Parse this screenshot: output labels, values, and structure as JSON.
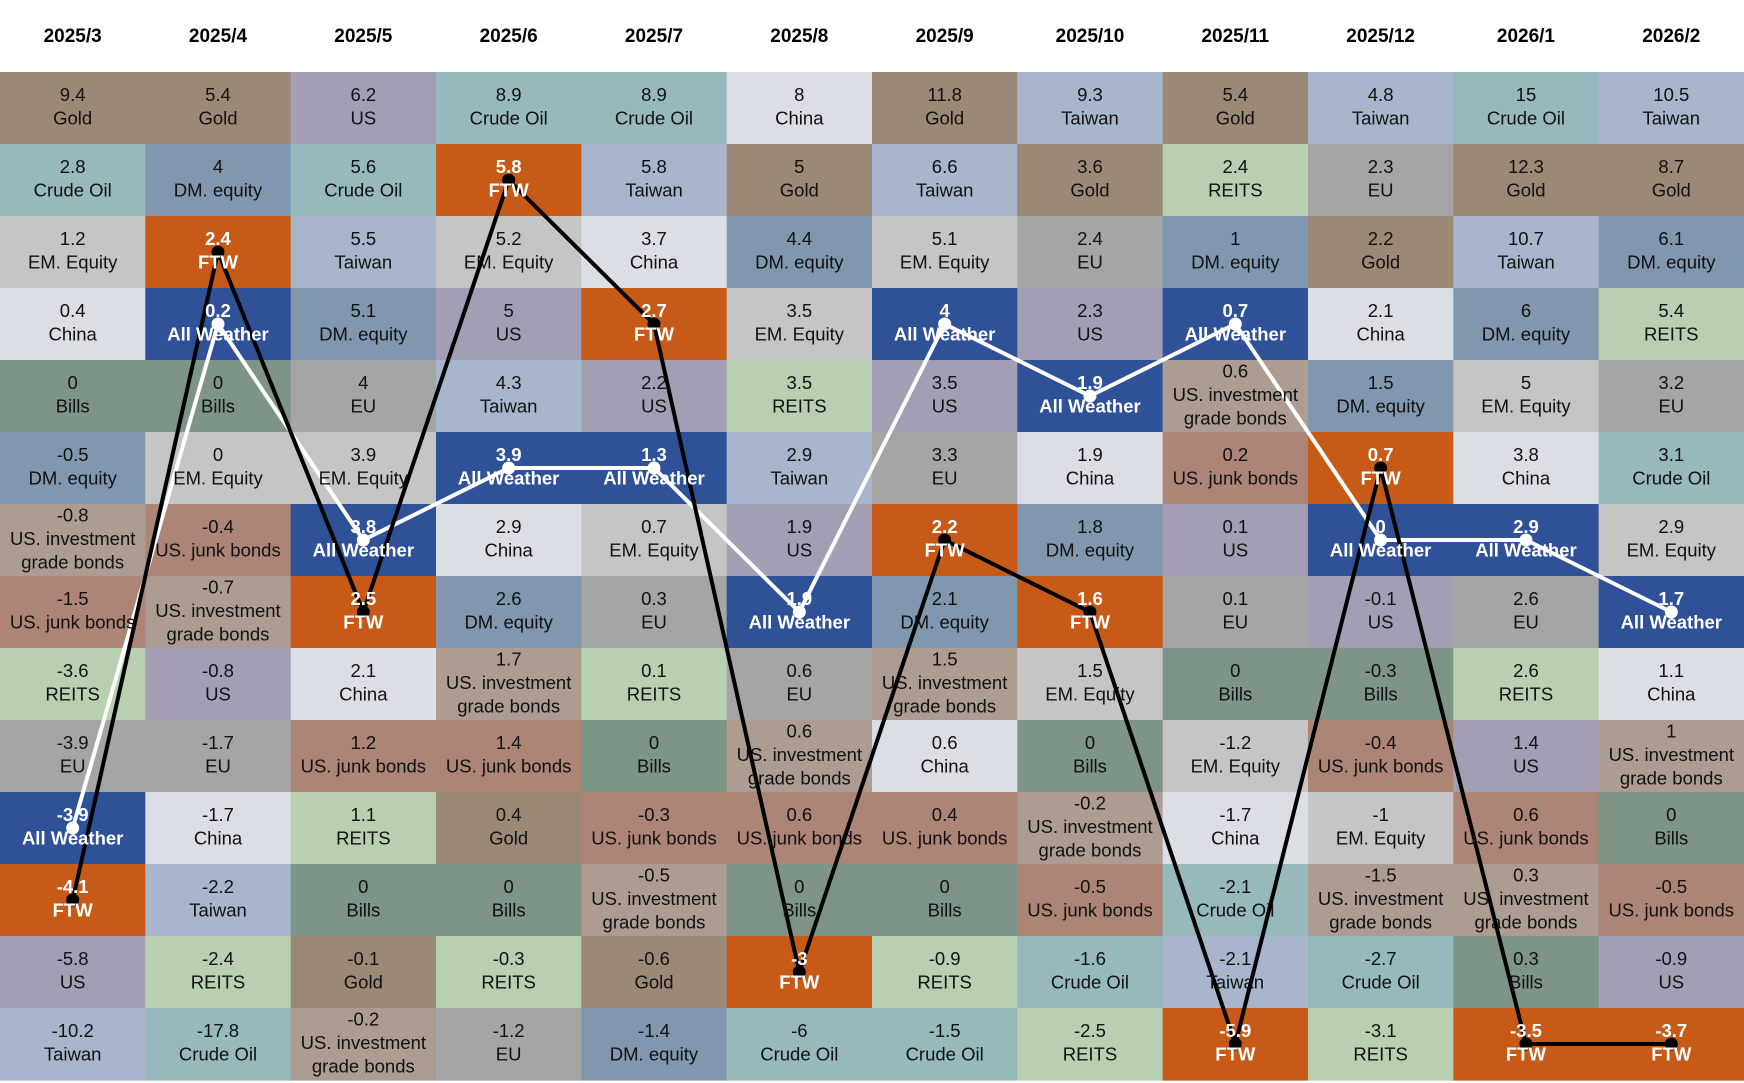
{
  "chart_data": {
    "type": "table",
    "columns": [
      "2025/3",
      "2025/4",
      "2025/5",
      "2025/6",
      "2025/7",
      "2025/8",
      "2025/9",
      "2025/10",
      "2025/11",
      "2025/12",
      "2026/1",
      "2026/2"
    ],
    "colors": {
      "Gold": "#9b8977",
      "Crude Oil": "#97b9bc",
      "EM. Equity": "#c5c5c5",
      "China": "#dcdee6",
      "Bills": "#7e9486",
      "DM. equity": "#8197b0",
      "US. investment grade bonds": "#ad9c92",
      "US. junk bonds": "#ac8577",
      "REITS": "#b9cfb2",
      "EU": "#a5a5a5",
      "All Weather": "#2e5198",
      "FTW": "#c65a16",
      "US": "#a39eb4",
      "Taiwan": "#a7b6cc"
    },
    "line_colors": {
      "FTW": "#000000",
      "All Weather": "#ffffff"
    },
    "cells": [
      [
        {
          "value": "9.4",
          "asset": "Gold"
        },
        {
          "value": "2.8",
          "asset": "Crude Oil"
        },
        {
          "value": "1.2",
          "asset": "EM. Equity"
        },
        {
          "value": "0.4",
          "asset": "China"
        },
        {
          "value": "0",
          "asset": "Bills"
        },
        {
          "value": "-0.5",
          "asset": "DM. equity"
        },
        {
          "value": "-0.8",
          "asset": "US. investment grade bonds"
        },
        {
          "value": "-1.5",
          "asset": "US. junk bonds"
        },
        {
          "value": "-3.6",
          "asset": "REITS"
        },
        {
          "value": "-3.9",
          "asset": "EU"
        },
        {
          "value": "-3.9",
          "asset": "All Weather"
        },
        {
          "value": "-4.1",
          "asset": "FTW"
        },
        {
          "value": "-5.8",
          "asset": "US"
        },
        {
          "value": "-10.2",
          "asset": "Taiwan"
        }
      ],
      [
        {
          "value": "5.4",
          "asset": "Gold"
        },
        {
          "value": "4",
          "asset": "DM. equity"
        },
        {
          "value": "2.4",
          "asset": "FTW"
        },
        {
          "value": "0.2",
          "asset": "All Weather"
        },
        {
          "value": "0",
          "asset": "Bills"
        },
        {
          "value": "0",
          "asset": "EM. Equity"
        },
        {
          "value": "-0.4",
          "asset": "US. junk bonds"
        },
        {
          "value": "-0.7",
          "asset": "US. investment grade bonds"
        },
        {
          "value": "-0.8",
          "asset": "US"
        },
        {
          "value": "-1.7",
          "asset": "EU"
        },
        {
          "value": "-1.7",
          "asset": "China"
        },
        {
          "value": "-2.2",
          "asset": "Taiwan"
        },
        {
          "value": "-2.4",
          "asset": "REITS"
        },
        {
          "value": "-17.8",
          "asset": "Crude Oil"
        }
      ],
      [
        {
          "value": "6.2",
          "asset": "US"
        },
        {
          "value": "5.6",
          "asset": "Crude Oil"
        },
        {
          "value": "5.5",
          "asset": "Taiwan"
        },
        {
          "value": "5.1",
          "asset": "DM. equity"
        },
        {
          "value": "4",
          "asset": "EU"
        },
        {
          "value": "3.9",
          "asset": "EM. Equity"
        },
        {
          "value": "3.8",
          "asset": "All Weather"
        },
        {
          "value": "2.5",
          "asset": "FTW"
        },
        {
          "value": "2.1",
          "asset": "China"
        },
        {
          "value": "1.2",
          "asset": "US. junk bonds"
        },
        {
          "value": "1.1",
          "asset": "REITS"
        },
        {
          "value": "0",
          "asset": "Bills"
        },
        {
          "value": "-0.1",
          "asset": "Gold"
        },
        {
          "value": "-0.2",
          "asset": "US. investment grade bonds"
        }
      ],
      [
        {
          "value": "8.9",
          "asset": "Crude Oil"
        },
        {
          "value": "5.8",
          "asset": "FTW"
        },
        {
          "value": "5.2",
          "asset": "EM. Equity"
        },
        {
          "value": "5",
          "asset": "US"
        },
        {
          "value": "4.3",
          "asset": "Taiwan"
        },
        {
          "value": "3.9",
          "asset": "All Weather"
        },
        {
          "value": "2.9",
          "asset": "China"
        },
        {
          "value": "2.6",
          "asset": "DM. equity"
        },
        {
          "value": "1.7",
          "asset": "US. investment grade bonds"
        },
        {
          "value": "1.4",
          "asset": "US. junk bonds"
        },
        {
          "value": "0.4",
          "asset": "Gold"
        },
        {
          "value": "0",
          "asset": "Bills"
        },
        {
          "value": "-0.3",
          "asset": "REITS"
        },
        {
          "value": "-1.2",
          "asset": "EU"
        }
      ],
      [
        {
          "value": "8.9",
          "asset": "Crude Oil"
        },
        {
          "value": "5.8",
          "asset": "Taiwan"
        },
        {
          "value": "3.7",
          "asset": "China"
        },
        {
          "value": "2.7",
          "asset": "FTW"
        },
        {
          "value": "2.2",
          "asset": "US"
        },
        {
          "value": "1.3",
          "asset": "All Weather"
        },
        {
          "value": "0.7",
          "asset": "EM. Equity"
        },
        {
          "value": "0.3",
          "asset": "EU"
        },
        {
          "value": "0.1",
          "asset": "REITS"
        },
        {
          "value": "0",
          "asset": "Bills"
        },
        {
          "value": "-0.3",
          "asset": "US. junk bonds"
        },
        {
          "value": "-0.5",
          "asset": "US. investment grade bonds"
        },
        {
          "value": "-0.6",
          "asset": "Gold"
        },
        {
          "value": "-1.4",
          "asset": "DM. equity"
        }
      ],
      [
        {
          "value": "8",
          "asset": "China"
        },
        {
          "value": "5",
          "asset": "Gold"
        },
        {
          "value": "4.4",
          "asset": "DM. equity"
        },
        {
          "value": "3.5",
          "asset": "EM. Equity"
        },
        {
          "value": "3.5",
          "asset": "REITS"
        },
        {
          "value": "2.9",
          "asset": "Taiwan"
        },
        {
          "value": "1.9",
          "asset": "US"
        },
        {
          "value": "1.9",
          "asset": "All Weather"
        },
        {
          "value": "0.6",
          "asset": "EU"
        },
        {
          "value": "0.6",
          "asset": "US. investment grade bonds"
        },
        {
          "value": "0.6",
          "asset": "US. junk bonds"
        },
        {
          "value": "0",
          "asset": "Bills"
        },
        {
          "value": "-3",
          "asset": "FTW"
        },
        {
          "value": "-6",
          "asset": "Crude Oil"
        }
      ],
      [
        {
          "value": "11.8",
          "asset": "Gold"
        },
        {
          "value": "6.6",
          "asset": "Taiwan"
        },
        {
          "value": "5.1",
          "asset": "EM. Equity"
        },
        {
          "value": "4",
          "asset": "All Weather"
        },
        {
          "value": "3.5",
          "asset": "US"
        },
        {
          "value": "3.3",
          "asset": "EU"
        },
        {
          "value": "2.2",
          "asset": "FTW"
        },
        {
          "value": "2.1",
          "asset": "DM. equity"
        },
        {
          "value": "1.5",
          "asset": "US. investment grade bonds"
        },
        {
          "value": "0.6",
          "asset": "China"
        },
        {
          "value": "0.4",
          "asset": "US. junk bonds"
        },
        {
          "value": "0",
          "asset": "Bills"
        },
        {
          "value": "-0.9",
          "asset": "REITS"
        },
        {
          "value": "-1.5",
          "asset": "Crude Oil"
        }
      ],
      [
        {
          "value": "9.3",
          "asset": "Taiwan"
        },
        {
          "value": "3.6",
          "asset": "Gold"
        },
        {
          "value": "2.4",
          "asset": "EU"
        },
        {
          "value": "2.3",
          "asset": "US"
        },
        {
          "value": "1.9",
          "asset": "All Weather"
        },
        {
          "value": "1.9",
          "asset": "China"
        },
        {
          "value": "1.8",
          "asset": "DM. equity"
        },
        {
          "value": "1.6",
          "asset": "FTW"
        },
        {
          "value": "1.5",
          "asset": "EM. Equity"
        },
        {
          "value": "0",
          "asset": "Bills"
        },
        {
          "value": "-0.2",
          "asset": "US. investment grade bonds"
        },
        {
          "value": "-0.5",
          "asset": "US. junk bonds"
        },
        {
          "value": "-1.6",
          "asset": "Crude Oil"
        },
        {
          "value": "-2.5",
          "asset": "REITS"
        }
      ],
      [
        {
          "value": "5.4",
          "asset": "Gold"
        },
        {
          "value": "2.4",
          "asset": "REITS"
        },
        {
          "value": "1",
          "asset": "DM. equity"
        },
        {
          "value": "0.7",
          "asset": "All Weather"
        },
        {
          "value": "0.6",
          "asset": "US. investment grade bonds"
        },
        {
          "value": "0.2",
          "asset": "US. junk bonds"
        },
        {
          "value": "0.1",
          "asset": "US"
        },
        {
          "value": "0.1",
          "asset": "EU"
        },
        {
          "value": "0",
          "asset": "Bills"
        },
        {
          "value": "-1.2",
          "asset": "EM. Equity"
        },
        {
          "value": "-1.7",
          "asset": "China"
        },
        {
          "value": "-2.1",
          "asset": "Crude Oil"
        },
        {
          "value": "-2.1",
          "asset": "Taiwan"
        },
        {
          "value": "-5.9",
          "asset": "FTW"
        }
      ],
      [
        {
          "value": "4.8",
          "asset": "Taiwan"
        },
        {
          "value": "2.3",
          "asset": "EU"
        },
        {
          "value": "2.2",
          "asset": "Gold"
        },
        {
          "value": "2.1",
          "asset": "China"
        },
        {
          "value": "1.5",
          "asset": "DM. equity"
        },
        {
          "value": "0.7",
          "asset": "FTW"
        },
        {
          "value": "0",
          "asset": "All Weather"
        },
        {
          "value": "-0.1",
          "asset": "US"
        },
        {
          "value": "-0.3",
          "asset": "Bills"
        },
        {
          "value": "-0.4",
          "asset": "US. junk bonds"
        },
        {
          "value": "-1",
          "asset": "EM. Equity"
        },
        {
          "value": "-1.5",
          "asset": "US. investment grade bonds"
        },
        {
          "value": "-2.7",
          "asset": "Crude Oil"
        },
        {
          "value": "-3.1",
          "asset": "REITS"
        }
      ],
      [
        {
          "value": "15",
          "asset": "Crude Oil"
        },
        {
          "value": "12.3",
          "asset": "Gold"
        },
        {
          "value": "10.7",
          "asset": "Taiwan"
        },
        {
          "value": "6",
          "asset": "DM. equity"
        },
        {
          "value": "5",
          "asset": "EM. Equity"
        },
        {
          "value": "3.8",
          "asset": "China"
        },
        {
          "value": "2.9",
          "asset": "All Weather"
        },
        {
          "value": "2.6",
          "asset": "EU"
        },
        {
          "value": "2.6",
          "asset": "REITS"
        },
        {
          "value": "1.4",
          "asset": "US"
        },
        {
          "value": "0.6",
          "asset": "US. junk bonds"
        },
        {
          "value": "0.3",
          "asset": "US. investment grade bonds"
        },
        {
          "value": "0.3",
          "asset": "Bills"
        },
        {
          "value": "-3.5",
          "asset": "FTW"
        }
      ],
      [
        {
          "value": "10.5",
          "asset": "Taiwan"
        },
        {
          "value": "8.7",
          "asset": "Gold"
        },
        {
          "value": "6.1",
          "asset": "DM. equity"
        },
        {
          "value": "5.4",
          "asset": "REITS"
        },
        {
          "value": "3.2",
          "asset": "EU"
        },
        {
          "value": "3.1",
          "asset": "Crude Oil"
        },
        {
          "value": "2.9",
          "asset": "EM. Equity"
        },
        {
          "value": "1.7",
          "asset": "All Weather"
        },
        {
          "value": "1.1",
          "asset": "China"
        },
        {
          "value": "1",
          "asset": "US. investment grade bonds"
        },
        {
          "value": "0",
          "asset": "Bills"
        },
        {
          "value": "-0.5",
          "asset": "US. junk bonds"
        },
        {
          "value": "-0.9",
          "asset": "US"
        },
        {
          "value": "-3.7",
          "asset": "FTW"
        }
      ]
    ]
  }
}
